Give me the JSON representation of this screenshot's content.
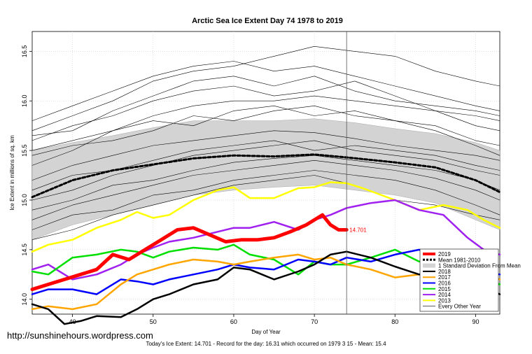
{
  "watermark": "http://sunshinehours.wordpress.com",
  "chart_data": {
    "type": "line",
    "title": "Arctic Sea Ice Extent Day 74 1978 to 2019",
    "xlabel": "Day of Year",
    "ylabel": "Ice Extent in millions of sq. km",
    "xlim": [
      35,
      93
    ],
    "ylim": [
      13.85,
      16.7
    ],
    "xticks": [
      40,
      50,
      60,
      70,
      80,
      90
    ],
    "yticks": [
      14.0,
      14.5,
      15.0,
      15.5,
      16.0,
      16.5
    ],
    "ytick_labels": [
      "14.0",
      "14.5",
      "15.0",
      "15.5",
      "16.0",
      "16.5"
    ],
    "vline_day": 74,
    "grid": true,
    "annotation": {
      "text": "14.701",
      "x": 74,
      "y": 14.701
    },
    "footer": "Today's Ice Extent: 14.701  - Record for the day: 16.31 which occurred on 1979 3 15  - Mean: 15.4",
    "legend_placement": "bottom-right",
    "legend": [
      {
        "label": "2019",
        "color": "#ff0000",
        "style": "thick"
      },
      {
        "label": "Mean 1981-2010",
        "color": "#000000",
        "style": "dashed"
      },
      {
        "label": "1 Standard Deviation From Mean",
        "color": "#d3d3d3",
        "style": "band"
      },
      {
        "label": "2018",
        "color": "#000000",
        "style": "line"
      },
      {
        "label": "2017",
        "color": "#ffa500",
        "style": "line"
      },
      {
        "label": "2016",
        "color": "#0000ff",
        "style": "line"
      },
      {
        "label": "2015",
        "color": "#00e000",
        "style": "line"
      },
      {
        "label": "2014",
        "color": "#a020f0",
        "style": "line"
      },
      {
        "label": "2013",
        "color": "#ffff00",
        "style": "line"
      },
      {
        "label": "Every Other Year",
        "color": "#000000",
        "style": "thin"
      }
    ],
    "std_band": {
      "x": [
        35,
        40,
        45,
        50,
        55,
        60,
        65,
        70,
        75,
        80,
        85,
        90,
        93
      ],
      "upper": [
        15.5,
        15.58,
        15.65,
        15.73,
        15.8,
        15.8,
        15.8,
        15.82,
        15.78,
        15.72,
        15.67,
        15.58,
        15.5
      ],
      "lower": [
        14.6,
        14.75,
        14.85,
        14.95,
        15.05,
        15.1,
        15.13,
        15.15,
        15.1,
        15.05,
        14.97,
        14.8,
        14.7
      ]
    },
    "series": [
      {
        "name": "Mean 1981-2010",
        "color": "#000000",
        "width": 3,
        "dash": "4,3",
        "x": [
          35,
          40,
          45,
          50,
          55,
          60,
          65,
          70,
          74,
          80,
          85,
          90,
          93
        ],
        "y": [
          15.03,
          15.2,
          15.3,
          15.36,
          15.42,
          15.45,
          15.44,
          15.46,
          15.43,
          15.38,
          15.33,
          15.2,
          15.08
        ]
      },
      {
        "name": "2013",
        "color": "#ffff00",
        "width": 2.5,
        "x": [
          35,
          37,
          40,
          43,
          46,
          48,
          50,
          52,
          55,
          58,
          60,
          62,
          65,
          68,
          70,
          72,
          74,
          76,
          80,
          83,
          86,
          89,
          91,
          93
        ],
        "y": [
          14.48,
          14.55,
          14.6,
          14.72,
          14.8,
          14.88,
          14.82,
          14.85,
          15.0,
          15.1,
          15.13,
          15.02,
          15.02,
          15.12,
          15.13,
          15.18,
          15.17,
          15.12,
          15.0,
          14.9,
          14.95,
          14.9,
          14.8,
          14.72
        ]
      },
      {
        "name": "2014",
        "color": "#a020f0",
        "width": 2.5,
        "x": [
          35,
          37,
          40,
          43,
          46,
          48,
          50,
          52,
          55,
          58,
          60,
          62,
          65,
          68,
          70,
          72,
          74,
          77,
          80,
          83,
          86,
          89,
          91,
          93
        ],
        "y": [
          14.3,
          14.35,
          14.2,
          14.25,
          14.35,
          14.45,
          14.52,
          14.58,
          14.62,
          14.68,
          14.72,
          14.72,
          14.78,
          14.7,
          14.8,
          14.85,
          14.92,
          14.97,
          15.0,
          14.9,
          14.85,
          14.62,
          14.5,
          14.45
        ]
      },
      {
        "name": "2015",
        "color": "#00e000",
        "width": 2.5,
        "x": [
          35,
          37,
          40,
          43,
          46,
          48,
          50,
          52,
          55,
          58,
          60,
          62,
          65,
          68,
          70,
          72,
          74,
          77,
          80,
          83,
          86,
          89,
          91,
          93
        ],
        "y": [
          14.28,
          14.25,
          14.42,
          14.45,
          14.5,
          14.48,
          14.42,
          14.48,
          14.52,
          14.5,
          14.55,
          14.45,
          14.4,
          14.25,
          14.38,
          14.35,
          14.35,
          14.42,
          14.5,
          14.38,
          14.42,
          14.3,
          14.2,
          14.15
        ]
      },
      {
        "name": "2016",
        "color": "#0000ff",
        "width": 2.5,
        "x": [
          35,
          37,
          40,
          43,
          46,
          48,
          50,
          52,
          55,
          58,
          60,
          62,
          65,
          68,
          70,
          72,
          74,
          77,
          80,
          83,
          86,
          89,
          91,
          93
        ],
        "y": [
          14.05,
          14.1,
          14.1,
          14.05,
          14.2,
          14.18,
          14.15,
          14.2,
          14.25,
          14.3,
          14.35,
          14.32,
          14.3,
          14.4,
          14.38,
          14.35,
          14.42,
          14.38,
          14.45,
          14.5,
          14.42,
          14.35,
          14.28,
          14.25
        ]
      },
      {
        "name": "2017",
        "color": "#ffa500",
        "width": 2.5,
        "x": [
          35,
          37,
          40,
          43,
          46,
          48,
          50,
          52,
          55,
          58,
          60,
          62,
          65,
          68,
          70,
          72,
          74,
          77,
          80,
          83,
          86,
          89,
          91,
          93
        ],
        "y": [
          13.9,
          13.93,
          13.9,
          13.95,
          14.15,
          14.25,
          14.3,
          14.35,
          14.4,
          14.38,
          14.35,
          14.38,
          14.42,
          14.45,
          14.4,
          14.42,
          14.35,
          14.3,
          14.22,
          14.25,
          14.15,
          14.2,
          14.25,
          14.2
        ]
      },
      {
        "name": "2018",
        "color": "#000000",
        "width": 2.5,
        "x": [
          35,
          37,
          39,
          41,
          43,
          46,
          48,
          50,
          52,
          55,
          58,
          60,
          62,
          65,
          68,
          70,
          72,
          74,
          77,
          80,
          83,
          86,
          89,
          91,
          93
        ],
        "y": [
          13.95,
          13.9,
          13.75,
          13.78,
          13.83,
          13.82,
          13.9,
          14.0,
          14.05,
          14.15,
          14.2,
          14.32,
          14.3,
          14.2,
          14.28,
          14.35,
          14.45,
          14.48,
          14.42,
          14.33,
          14.25,
          14.3,
          14.22,
          14.12,
          14.05
        ]
      },
      {
        "name": "2019",
        "color": "#ff0000",
        "width": 5,
        "x": [
          35,
          37,
          39,
          41,
          43,
          45,
          47,
          49,
          51,
          53,
          55,
          57,
          59,
          61,
          63,
          65,
          67,
          69,
          71,
          72,
          73,
          74
        ],
        "y": [
          14.1,
          14.15,
          14.2,
          14.25,
          14.3,
          14.45,
          14.4,
          14.5,
          14.6,
          14.7,
          14.72,
          14.65,
          14.58,
          14.6,
          14.6,
          14.62,
          14.68,
          14.75,
          14.85,
          14.75,
          14.7,
          14.7
        ]
      },
      {
        "name": "Every Other Year",
        "color": "#000000",
        "width": 0.6,
        "x": [
          35,
          40,
          45,
          50,
          55,
          60,
          65,
          70,
          75,
          80,
          85,
          90,
          93
        ],
        "y": [
          15.5,
          15.6,
          15.7,
          15.85,
          15.95,
          16.0,
          16.0,
          16.05,
          16.0,
          15.95,
          15.9,
          15.85,
          15.8
        ]
      },
      {
        "name": "Every Other Year",
        "color": "#000000",
        "width": 0.6,
        "x": [
          35,
          40,
          45,
          50,
          55,
          60,
          65,
          70,
          75,
          80,
          85,
          90,
          93
        ],
        "y": [
          15.7,
          15.85,
          16.0,
          16.2,
          16.3,
          16.35,
          16.45,
          16.55,
          16.5,
          16.45,
          16.3,
          16.2,
          16.15
        ]
      },
      {
        "name": "Every Other Year",
        "color": "#000000",
        "width": 0.6,
        "x": [
          35,
          40,
          45,
          50,
          55,
          60,
          65,
          70,
          75,
          80,
          85,
          90,
          93
        ],
        "y": [
          15.2,
          15.35,
          15.45,
          15.55,
          15.6,
          15.65,
          15.7,
          15.68,
          15.62,
          15.55,
          15.5,
          15.45,
          15.4
        ]
      },
      {
        "name": "Every Other Year",
        "color": "#000000",
        "width": 0.6,
        "x": [
          35,
          40,
          45,
          50,
          55,
          60,
          65,
          70,
          75,
          80,
          85,
          90,
          93
        ],
        "y": [
          14.8,
          14.95,
          15.05,
          15.15,
          15.25,
          15.3,
          15.35,
          15.4,
          15.35,
          15.3,
          15.22,
          15.1,
          15.0
        ]
      },
      {
        "name": "Every Other Year",
        "color": "#000000",
        "width": 0.6,
        "x": [
          35,
          40,
          45,
          50,
          55,
          60,
          65,
          70,
          75,
          80,
          85,
          90,
          93
        ],
        "y": [
          15.6,
          15.75,
          15.85,
          16.0,
          16.1,
          16.15,
          16.05,
          16.1,
          16.2,
          16.05,
          15.9,
          15.75,
          15.7
        ]
      },
      {
        "name": "Every Other Year",
        "color": "#000000",
        "width": 0.6,
        "x": [
          35,
          40,
          45,
          50,
          55,
          60,
          65,
          70,
          75,
          80,
          85,
          90,
          93
        ],
        "y": [
          14.6,
          14.7,
          14.85,
          14.95,
          15.05,
          15.15,
          15.2,
          15.25,
          15.15,
          15.0,
          14.95,
          14.85,
          14.8
        ]
      },
      {
        "name": "Every Other Year",
        "color": "#000000",
        "width": 0.6,
        "x": [
          35,
          40,
          45,
          50,
          55,
          60,
          65,
          70,
          75,
          80,
          85,
          90,
          93
        ],
        "y": [
          15.35,
          15.5,
          15.7,
          15.8,
          15.75,
          15.9,
          15.95,
          15.85,
          15.9,
          15.8,
          15.7,
          15.55,
          15.45
        ]
      },
      {
        "name": "Every Other Year",
        "color": "#000000",
        "width": 0.6,
        "x": [
          35,
          40,
          45,
          50,
          55,
          60,
          65,
          70,
          75,
          80,
          85,
          90,
          93
        ],
        "y": [
          15.0,
          15.1,
          15.25,
          15.35,
          15.45,
          15.5,
          15.55,
          15.6,
          15.5,
          15.45,
          15.4,
          15.3,
          15.25
        ]
      },
      {
        "name": "Every Other Year",
        "color": "#000000",
        "width": 0.6,
        "x": [
          35,
          40,
          45,
          50,
          55,
          60,
          65,
          70,
          75,
          80,
          85,
          90,
          93
        ],
        "y": [
          15.8,
          15.95,
          16.1,
          16.25,
          16.35,
          16.4,
          16.3,
          16.35,
          16.25,
          16.15,
          16.05,
          15.95,
          15.9
        ]
      },
      {
        "name": "Every Other Year",
        "color": "#000000",
        "width": 0.6,
        "x": [
          35,
          40,
          45,
          50,
          55,
          60,
          65,
          70,
          75,
          80,
          85,
          90,
          93
        ],
        "y": [
          14.9,
          15.0,
          15.15,
          15.2,
          15.3,
          15.38,
          15.42,
          15.45,
          15.4,
          15.35,
          15.3,
          15.2,
          15.1
        ]
      },
      {
        "name": "Every Other Year",
        "color": "#000000",
        "width": 0.6,
        "x": [
          35,
          40,
          45,
          50,
          55,
          60,
          65,
          70,
          75,
          80,
          85,
          90,
          93
        ],
        "y": [
          15.45,
          15.55,
          15.6,
          15.7,
          15.85,
          15.8,
          15.9,
          15.95,
          15.85,
          15.8,
          15.75,
          15.6,
          15.55
        ]
      },
      {
        "name": "Every Other Year",
        "color": "#000000",
        "width": 0.6,
        "x": [
          35,
          40,
          45,
          50,
          55,
          60,
          65,
          70,
          75,
          80,
          85,
          90,
          93
        ],
        "y": [
          15.1,
          15.25,
          15.3,
          15.4,
          15.5,
          15.55,
          15.6,
          15.5,
          15.55,
          15.5,
          15.45,
          15.35,
          15.3
        ]
      },
      {
        "name": "Every Other Year",
        "color": "#000000",
        "width": 0.6,
        "x": [
          35,
          40,
          45,
          50,
          55,
          60,
          65,
          70,
          75,
          80,
          85,
          90,
          93
        ],
        "y": [
          15.65,
          15.7,
          15.9,
          16.05,
          16.2,
          16.25,
          16.15,
          16.25,
          16.1,
          16.0,
          15.95,
          15.9,
          15.85
        ]
      },
      {
        "name": "Every Other Year",
        "color": "#000000",
        "width": 0.6,
        "x": [
          35,
          40,
          45,
          50,
          55,
          60,
          65,
          70,
          75,
          80,
          85,
          90,
          93
        ],
        "y": [
          14.7,
          14.85,
          14.9,
          15.05,
          15.1,
          15.2,
          15.25,
          15.3,
          15.25,
          15.2,
          15.1,
          14.95,
          14.85
        ]
      }
    ]
  }
}
